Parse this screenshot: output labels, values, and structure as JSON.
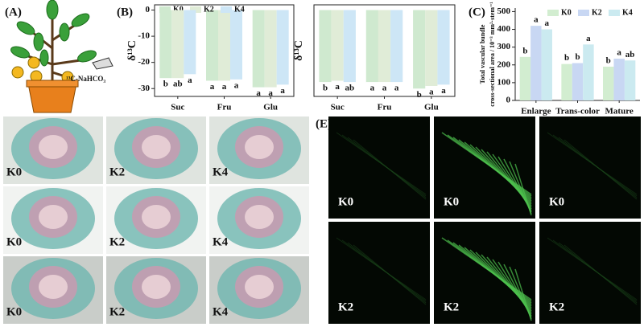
{
  "labels": {
    "A": "(A)",
    "B": "(B)",
    "C": "(C)",
    "E": "(E)"
  },
  "tracer": "¹³C-NaHCO₃",
  "micrographs": [
    [
      "K0",
      "K2",
      "K4"
    ],
    [
      "K0",
      "K2",
      "K4"
    ],
    [
      "K0",
      "K2",
      "K4"
    ]
  ],
  "fluorescence": [
    [
      "K0",
      "K0",
      "K0"
    ],
    [
      "K2",
      "K2",
      "K2"
    ]
  ],
  "chart_data": [
    {
      "type": "bar",
      "ylabel": "δ¹³C",
      "categories": [
        "Suc",
        "Fru",
        "Glu"
      ],
      "ylim": [
        -33,
        2
      ],
      "yticks": [
        0,
        -10,
        -20,
        -30
      ],
      "series": [
        {
          "name": "K0",
          "color": "#cfe9cf",
          "values": [
            -26,
            -27,
            -29.5
          ],
          "significance": [
            "b",
            "a",
            "a"
          ]
        },
        {
          "name": "K2",
          "color": "#e0ecd7",
          "values": [
            -26,
            -27,
            -29.5
          ],
          "significance": [
            "ab",
            "a",
            "a"
          ]
        },
        {
          "name": "K4",
          "color": "#cde6f6",
          "values": [
            -24.5,
            -26.5,
            -28.5
          ],
          "significance": [
            "a",
            "a",
            "a"
          ]
        }
      ]
    },
    {
      "type": "bar",
      "ylabel": "δ¹³C",
      "categories": [
        "Suc",
        "Fru",
        "Glu"
      ],
      "ylim": [
        -33,
        2
      ],
      "series": [
        {
          "color": "#cfe9cf",
          "values": [
            -27.5,
            -27.5,
            -30
          ],
          "significance": [
            "b",
            "a",
            "b"
          ]
        },
        {
          "color": "#e0ecd7",
          "values": [
            -27,
            -27.5,
            -29
          ],
          "significance": [
            "a",
            "a",
            "a"
          ]
        },
        {
          "color": "#cde6f6",
          "values": [
            -27.5,
            -27.5,
            -28.5
          ],
          "significance": [
            "ab",
            "a",
            "a"
          ]
        }
      ]
    },
    {
      "type": "bar",
      "ylabel": [
        "Total vascular bundle",
        "cross-sectional area / 10⁻³ mm²·stem⁻¹"
      ],
      "categories": [
        "Enlarge",
        "Trans-color",
        "Mature"
      ],
      "ylim": [
        0,
        520
      ],
      "yticks": [
        0,
        100,
        200,
        300,
        400,
        500
      ],
      "series": [
        {
          "name": "K0",
          "color": "#d2edd0",
          "values": [
            245,
            205,
            190
          ],
          "significance": [
            "b",
            "b",
            "b"
          ]
        },
        {
          "name": "K2",
          "color": "#c8d7f3",
          "values": [
            420,
            210,
            235
          ],
          "significance": [
            "a",
            "b",
            "a"
          ]
        },
        {
          "name": "K4",
          "color": "#cbeaf0",
          "values": [
            400,
            315,
            225
          ],
          "significance": [
            "a",
            "a",
            "ab"
          ]
        }
      ]
    }
  ]
}
